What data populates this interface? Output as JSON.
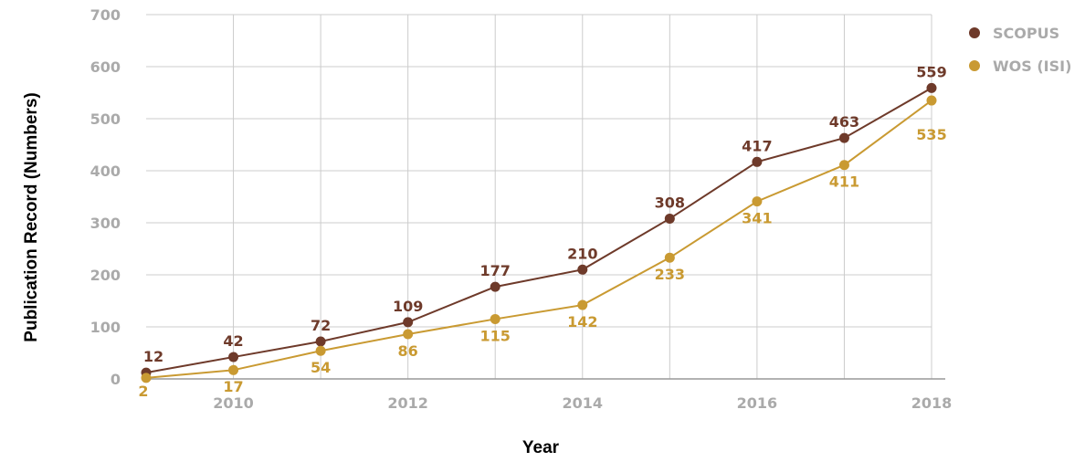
{
  "chart_data": {
    "type": "line",
    "xlabel": "Year",
    "ylabel": "Publication Record (Numbers)",
    "x": [
      2009,
      2010,
      2011,
      2012,
      2013,
      2014,
      2015,
      2016,
      2017,
      2018
    ],
    "x_tick_labels": [
      "2010",
      "2012",
      "2014",
      "2016",
      "2018"
    ],
    "xlim": [
      2009,
      2018
    ],
    "ylim": [
      0,
      700
    ],
    "y_ticks": [
      0,
      100,
      200,
      300,
      400,
      500,
      600,
      700
    ],
    "grid": true,
    "legend_position": "top-right",
    "series": [
      {
        "name": "SCOPUS",
        "color": "#6e3a2a",
        "values": [
          12,
          42,
          72,
          109,
          177,
          210,
          308,
          417,
          463,
          559
        ]
      },
      {
        "name": "WOS (ISI)",
        "color": "#c99a32",
        "values": [
          2,
          17,
          54,
          86,
          115,
          142,
          233,
          341,
          411,
          535
        ]
      }
    ]
  }
}
